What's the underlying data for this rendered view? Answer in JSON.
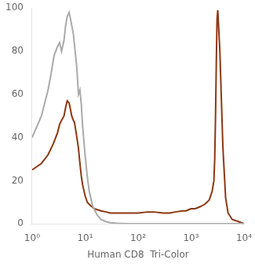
{
  "chart_data": {
    "type": "line",
    "xlabel": "Human CD8  Tri-Color",
    "log": "x",
    "grid": false,
    "xlim": [
      1,
      10000
    ],
    "xticks": [
      {
        "value": 1,
        "label": "10⁰"
      },
      {
        "value": 10,
        "label": "10¹"
      },
      {
        "value": 100,
        "label": "10²"
      },
      {
        "value": 1000,
        "label": "10³"
      },
      {
        "value": 10000,
        "label": "10⁴"
      }
    ],
    "ylim": [
      0,
      100
    ],
    "yticks": [
      0,
      20,
      40,
      60,
      80,
      100
    ],
    "series": [
      {
        "color": "#aaaaaa",
        "x": [
          1,
          1.5,
          2,
          2.3,
          2.6,
          3,
          3.3,
          3.6,
          4,
          4.3,
          4.6,
          5,
          5.3,
          5.6,
          6,
          6.5,
          7,
          7.5,
          8,
          8.5,
          9,
          10,
          11,
          12,
          14,
          17,
          20,
          25,
          30,
          40,
          50,
          70,
          100,
          200,
          500,
          1000,
          2000,
          5000,
          10000
        ],
        "values": [
          40,
          50,
          62,
          70,
          78,
          82,
          84,
          80,
          85,
          92,
          96,
          98,
          95,
          92,
          88,
          80,
          72,
          60,
          62,
          55,
          45,
          32,
          22,
          15,
          8,
          4,
          2,
          1,
          0.5,
          0.3,
          0.2,
          0.1,
          0.1,
          0.1,
          0.1,
          0.1,
          0.1,
          0.1,
          0.1
        ]
      },
      {
        "color": "#8B3812",
        "x": [
          1,
          1.5,
          2,
          2.5,
          3,
          3.3,
          3.6,
          4,
          4.3,
          4.6,
          5,
          5.3,
          5.6,
          6,
          6.3,
          6.6,
          7,
          7.5,
          8,
          8.5,
          9,
          10,
          11,
          12,
          15,
          20,
          25,
          30,
          40,
          50,
          70,
          100,
          150,
          200,
          300,
          400,
          500,
          700,
          800,
          1000,
          1200,
          1500,
          1800,
          2000,
          2200,
          2500,
          2700,
          2800,
          2900,
          3000,
          3100,
          3200,
          3500,
          4000,
          4500,
          5000,
          6000,
          8000,
          10000
        ],
        "values": [
          25,
          28,
          32,
          37,
          42,
          46,
          48,
          50,
          54,
          57,
          56,
          53,
          50,
          48,
          47,
          44,
          40,
          35,
          28,
          22,
          18,
          13,
          10,
          9,
          7,
          6,
          5.5,
          5,
          5,
          5,
          5,
          5,
          5.5,
          5.5,
          5,
          5,
          5.5,
          6,
          6,
          7,
          7,
          8,
          9,
          10,
          11,
          15,
          20,
          30,
          50,
          75,
          95,
          99,
          80,
          35,
          12,
          5,
          2,
          1,
          0
        ]
      }
    ]
  }
}
